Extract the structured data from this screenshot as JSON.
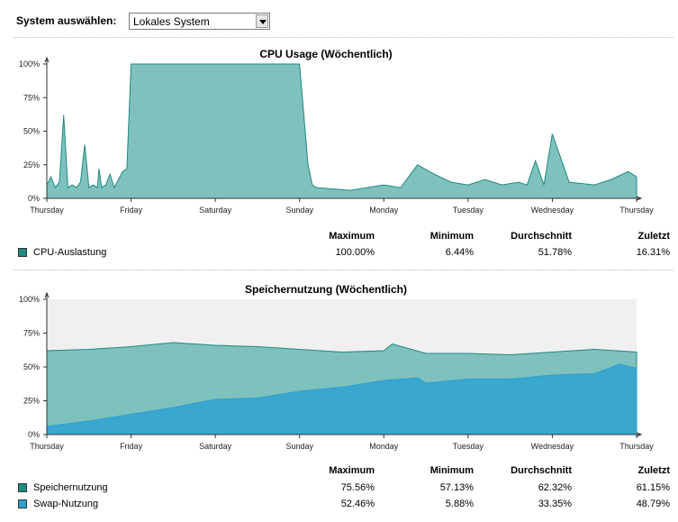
{
  "selector": {
    "label": "System auswählen:",
    "value": "Lokales System"
  },
  "charts": [
    {
      "title": "CPU Usage (Wöchentlich)",
      "y_ticks": [
        "100%",
        "75%",
        "50%",
        "25%",
        "0%"
      ],
      "x_ticks": [
        "Thursday",
        "Friday",
        "Saturday",
        "Sunday",
        "Monday",
        "Tuesday",
        "Wednesday",
        "Thursday"
      ],
      "stat_headers": [
        "Maximum",
        "Minimum",
        "Durchschnitt",
        "Zuletzt"
      ],
      "rows": [
        {
          "name": "CPU-Auslastung",
          "color": "#1f8a80",
          "values": [
            "100.00%",
            "6.44%",
            "51.78%",
            "16.31%"
          ]
        }
      ]
    },
    {
      "title": "Speichernutzung (Wöchentlich)",
      "y_ticks": [
        "100%",
        "75%",
        "50%",
        "25%",
        "0%"
      ],
      "x_ticks": [
        "Thursday",
        "Friday",
        "Saturday",
        "Sunday",
        "Monday",
        "Tuesday",
        "Wednesday",
        "Thursday"
      ],
      "stat_headers": [
        "Maximum",
        "Minimum",
        "Durchschnitt",
        "Zuletzt"
      ],
      "rows": [
        {
          "name": "Speichernutzung",
          "color": "#1f8a80",
          "values": [
            "75.56%",
            "57.13%",
            "62.32%",
            "61.15%"
          ]
        },
        {
          "name": "Swap-Nutzung",
          "color": "#2e9fd0",
          "values": [
            "52.46%",
            "5.88%",
            "33.35%",
            "48.79%"
          ]
        }
      ]
    }
  ],
  "chart_data": [
    {
      "type": "area",
      "title": "CPU Usage (Wöchentlich)",
      "x_unit": "days since start of week window (0 = Thursday, 7 = Thursday)",
      "ylim": [
        0,
        100
      ],
      "series": [
        {
          "name": "CPU-Auslastung",
          "color": "#7fc1bd",
          "stroke": "#1f8a80",
          "x": [
            0,
            0.05,
            0.1,
            0.15,
            0.2,
            0.25,
            0.3,
            0.35,
            0.4,
            0.45,
            0.5,
            0.55,
            0.6,
            0.62,
            0.65,
            0.7,
            0.75,
            0.8,
            0.85,
            0.9,
            0.95,
            1.0,
            1.0,
            1.05,
            6.0,
            6.2,
            6.5,
            6.7,
            6.9,
            7.0,
            3.0,
            3.1,
            3.15,
            3.2,
            3.4,
            3.6,
            3.8,
            4.0,
            4.2,
            4.4,
            4.6,
            4.8,
            5.0,
            5.2,
            5.4,
            5.6,
            5.7,
            5.8,
            5.9
          ],
          "y": [
            10,
            16,
            8,
            12,
            62,
            8,
            10,
            8,
            12,
            40,
            8,
            10,
            8,
            22,
            8,
            10,
            18,
            8,
            14,
            20,
            22,
            100,
            100,
            100,
            48,
            12,
            10,
            14,
            20,
            16,
            100,
            25,
            10,
            8,
            7,
            6,
            8,
            10,
            8,
            25,
            18,
            12,
            10,
            14,
            10,
            12,
            10,
            28,
            10
          ]
        }
      ]
    },
    {
      "type": "area",
      "title": "Speichernutzung (Wöchentlich)",
      "x_unit": "days since start of week window (0 = Thursday, 7 = Thursday)",
      "ylim": [
        0,
        100
      ],
      "series": [
        {
          "name": "Speichernutzung",
          "color": "#7fc1bd",
          "stroke": "#1f8a80",
          "x": [
            0,
            0.5,
            1.0,
            1.5,
            2.0,
            2.5,
            3.0,
            3.5,
            4.0,
            4.1,
            4.5,
            5.0,
            5.5,
            6.0,
            6.5,
            7.0
          ],
          "y": [
            62,
            63,
            65,
            68,
            66,
            65,
            63,
            61,
            62,
            67,
            60,
            60,
            59,
            61,
            63,
            61
          ]
        },
        {
          "name": "Swap-Nutzung",
          "color": "#3aa7cf",
          "stroke": "#2e9fd0",
          "x": [
            0,
            0.5,
            1.0,
            1.5,
            2.0,
            2.5,
            3.0,
            3.5,
            4.0,
            4.4,
            4.5,
            5.0,
            5.5,
            6.0,
            6.5,
            6.8,
            7.0
          ],
          "y": [
            6,
            10,
            15,
            20,
            26,
            27,
            32,
            35,
            40,
            42,
            38,
            41,
            41,
            44,
            45,
            52,
            49
          ]
        }
      ]
    }
  ]
}
